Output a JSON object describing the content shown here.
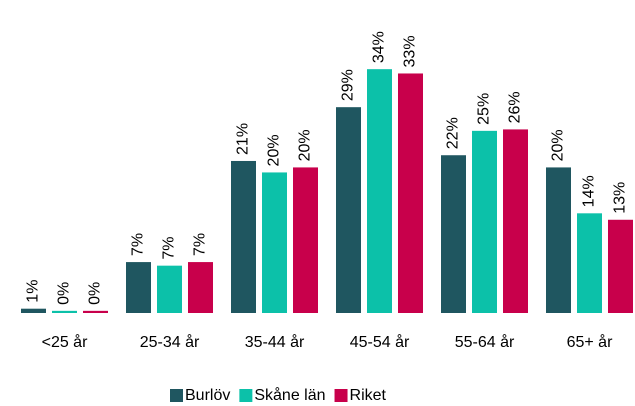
{
  "chart_data": {
    "type": "bar",
    "categories": [
      "<25 år",
      "25-34 år",
      "35-44 år",
      "45-54 år",
      "55-64 år",
      "65+ år"
    ],
    "series": [
      {
        "name": "Burlöv",
        "color": "#1f5660",
        "values": [
          0.6,
          7.1,
          21.2,
          28.7,
          22.0,
          20.3
        ],
        "value_labels": [
          "1%",
          "7%",
          "21%",
          "29%",
          "22%",
          "20%"
        ]
      },
      {
        "name": "Skåne län",
        "color": "#0cc1a9",
        "values": [
          0.3,
          6.6,
          19.6,
          34.0,
          25.4,
          13.9
        ],
        "value_labels": [
          "0%",
          "7%",
          "20%",
          "34%",
          "25%",
          "14%"
        ]
      },
      {
        "name": "Riket",
        "color": "#c8004b",
        "values": [
          0.3,
          7.1,
          20.3,
          33.4,
          25.6,
          13.0
        ],
        "value_labels": [
          "0%",
          "7%",
          "20%",
          "33%",
          "26%",
          "13%"
        ]
      }
    ],
    "ylim": [
      0,
      35
    ],
    "legend": "bottom"
  }
}
